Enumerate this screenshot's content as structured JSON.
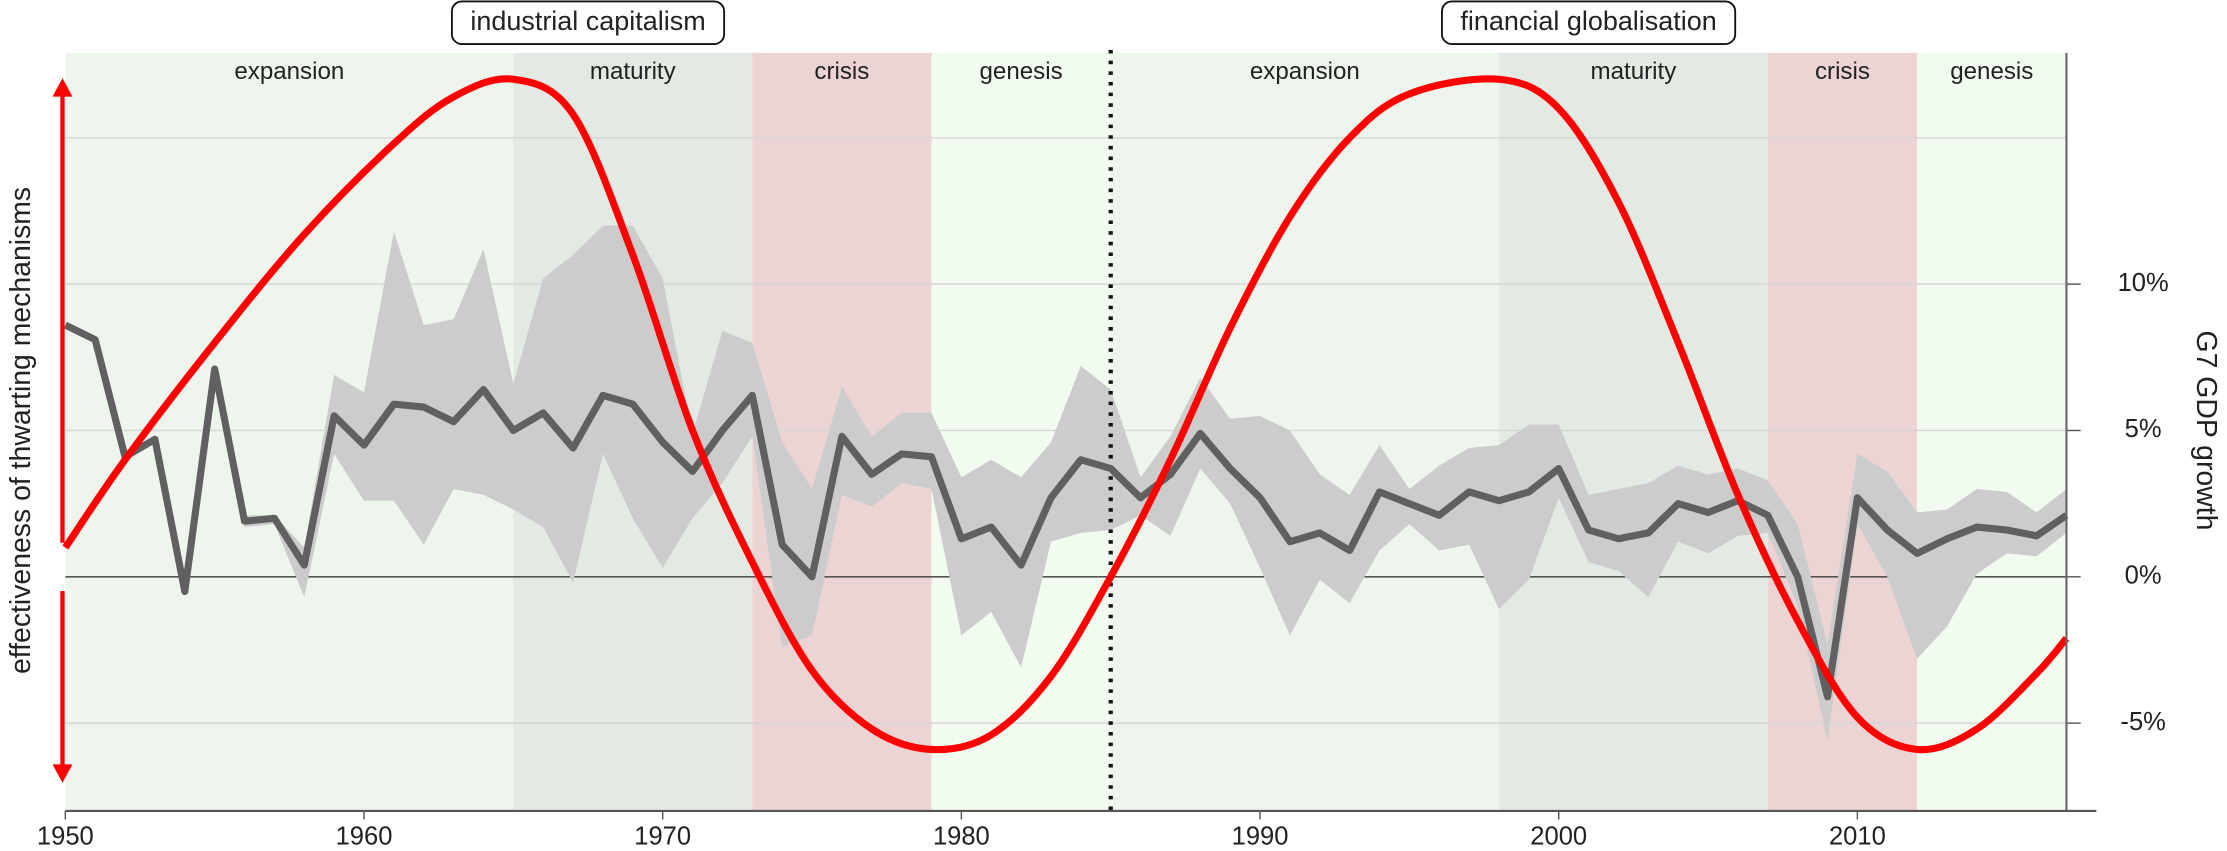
{
  "chart_data": {
    "type": "line",
    "x": [
      1950,
      1951,
      1952,
      1953,
      1954,
      1955,
      1956,
      1957,
      1958,
      1959,
      1960,
      1961,
      1962,
      1963,
      1964,
      1965,
      1966,
      1967,
      1968,
      1969,
      1970,
      1971,
      1972,
      1973,
      1974,
      1975,
      1976,
      1977,
      1978,
      1979,
      1980,
      1981,
      1982,
      1983,
      1984,
      1985,
      1986,
      1987,
      1988,
      1989,
      1990,
      1991,
      1992,
      1993,
      1994,
      1995,
      1996,
      1997,
      1998,
      1999,
      2000,
      2001,
      2002,
      2003,
      2004,
      2005,
      2006,
      2007,
      2008,
      2009,
      2010,
      2011,
      2012,
      2013,
      2014,
      2015,
      2016,
      2017
    ],
    "series": [
      {
        "color": "#606060",
        "values": [
          8.6,
          8.1,
          4.1,
          4.7,
          -0.5,
          7.1,
          1.9,
          2.0,
          0.4,
          5.5,
          4.5,
          5.9,
          5.8,
          5.3,
          6.4,
          5.0,
          5.6,
          4.4,
          6.2,
          5.9,
          4.6,
          3.6,
          5.0,
          6.2,
          1.1,
          0.0,
          4.8,
          3.5,
          4.2,
          4.1,
          1.3,
          1.7,
          0.4,
          2.7,
          4.0,
          3.7,
          2.7,
          3.5,
          4.9,
          3.7,
          2.7,
          1.2,
          1.5,
          0.9,
          2.9,
          2.5,
          2.1,
          2.9,
          2.6,
          2.9,
          3.7,
          1.6,
          1.3,
          1.5,
          2.5,
          2.2,
          2.6,
          2.1,
          0.0,
          -4.1,
          2.7,
          1.6,
          0.8,
          1.3,
          1.7,
          1.6,
          1.4,
          2.1
        ]
      }
    ],
    "band": {
      "color": "#cccccc",
      "upper": [
        8.6,
        8.1,
        4.3,
        4.8,
        -0.4,
        7.2,
        2.1,
        2.1,
        1.0,
        6.9,
        6.3,
        11.8,
        8.6,
        8.8,
        11.2,
        6.6,
        10.2,
        11.0,
        12.0,
        12.0,
        10.2,
        4.9,
        8.4,
        8.0,
        4.6,
        3.0,
        6.5,
        4.8,
        5.6,
        5.6,
        3.4,
        4.0,
        3.4,
        4.6,
        7.2,
        6.4,
        3.4,
        4.8,
        6.8,
        5.4,
        5.5,
        5.0,
        3.5,
        2.8,
        4.5,
        3.0,
        3.8,
        4.4,
        4.5,
        5.2,
        5.2,
        2.8,
        3.0,
        3.2,
        3.8,
        3.5,
        3.7,
        3.3,
        1.8,
        -2.3,
        4.2,
        3.6,
        2.2,
        2.3,
        3.0,
        2.9,
        2.2,
        3.0
      ],
      "lower": [
        8.6,
        8.1,
        4.0,
        4.6,
        -0.6,
        7.0,
        1.7,
        1.8,
        -0.7,
        4.2,
        2.6,
        2.6,
        1.1,
        3.0,
        2.8,
        2.3,
        1.7,
        -0.2,
        4.2,
        2.0,
        0.3,
        2.0,
        3.2,
        4.8,
        -2.4,
        -2.0,
        2.8,
        2.4,
        3.2,
        3.0,
        -2.0,
        -1.2,
        -3.1,
        1.2,
        1.5,
        1.6,
        2.1,
        1.4,
        3.7,
        2.5,
        0.3,
        -2.0,
        -0.1,
        -0.9,
        0.9,
        1.8,
        0.9,
        1.1,
        -1.1,
        -0.1,
        2.7,
        0.5,
        0.2,
        -0.7,
        1.2,
        0.8,
        1.4,
        1.5,
        -1.0,
        -5.6,
        1.8,
        0.0,
        -2.8,
        -1.7,
        0.1,
        0.8,
        0.7,
        1.5
      ]
    },
    "curve": {
      "color": "#ff0000",
      "x": [
        1950,
        1952,
        1955,
        1958,
        1961,
        1963,
        1965,
        1967,
        1969,
        1971,
        1973,
        1975,
        1977,
        1979,
        1981,
        1983,
        1985,
        1987,
        1989,
        1991,
        1993,
        1995,
        1998,
        2000,
        2002,
        2004,
        2006,
        2008,
        2010,
        2012,
        2014,
        2016,
        2017
      ],
      "values": [
        1.0,
        4.0,
        8.0,
        11.7,
        14.8,
        16.4,
        17.0,
        15.8,
        11.0,
        5.0,
        0.5,
        -3.2,
        -5.2,
        -5.9,
        -5.4,
        -3.4,
        0.0,
        4.0,
        8.5,
        12.3,
        15.0,
        16.5,
        17.0,
        16.0,
        12.8,
        8.0,
        2.8,
        -1.5,
        -4.8,
        -5.9,
        -5.2,
        -3.3,
        -2.1
      ]
    },
    "eras": [
      {
        "label": "industrial capitalism",
        "start": 1950,
        "end": 1985
      },
      {
        "label": "financial globalisation",
        "start": 1985,
        "end": 2017
      }
    ],
    "phases": [
      {
        "label": "expansion",
        "start": 1950,
        "end": 1965,
        "color": "#eef5ec"
      },
      {
        "label": "maturity",
        "start": 1965,
        "end": 1973,
        "color": "#e3eae3"
      },
      {
        "label": "crisis",
        "start": 1973,
        "end": 1979,
        "color": "#ecd4d4"
      },
      {
        "label": "genesis",
        "start": 1979,
        "end": 1985,
        "color": "#f2fbf0"
      },
      {
        "label": "expansion",
        "start": 1985,
        "end": 1998,
        "color": "#eef5ec"
      },
      {
        "label": "maturity",
        "start": 1998,
        "end": 2007,
        "color": "#e3eae3"
      },
      {
        "label": "crisis",
        "start": 2007,
        "end": 2012,
        "color": "#ecd4d4"
      },
      {
        "label": "genesis",
        "start": 2012,
        "end": 2017,
        "color": "#f2fbf0"
      }
    ],
    "xlim": [
      1950,
      2018
    ],
    "ylim": [
      -8,
      18
    ],
    "xticks": [
      1950,
      1960,
      1970,
      1980,
      1990,
      2000,
      2010
    ],
    "yticks": [
      {
        "value": -5,
        "label": "-5%"
      },
      {
        "value": 0,
        "label": "0%"
      },
      {
        "value": 5,
        "label": "5%"
      },
      {
        "value": 10,
        "label": "10%"
      }
    ],
    "grid_lines": [
      -5,
      0,
      5,
      10,
      15
    ],
    "y_label": "G7 GDP growth",
    "left_label": "effectiveness of thwarting mechanisms"
  }
}
